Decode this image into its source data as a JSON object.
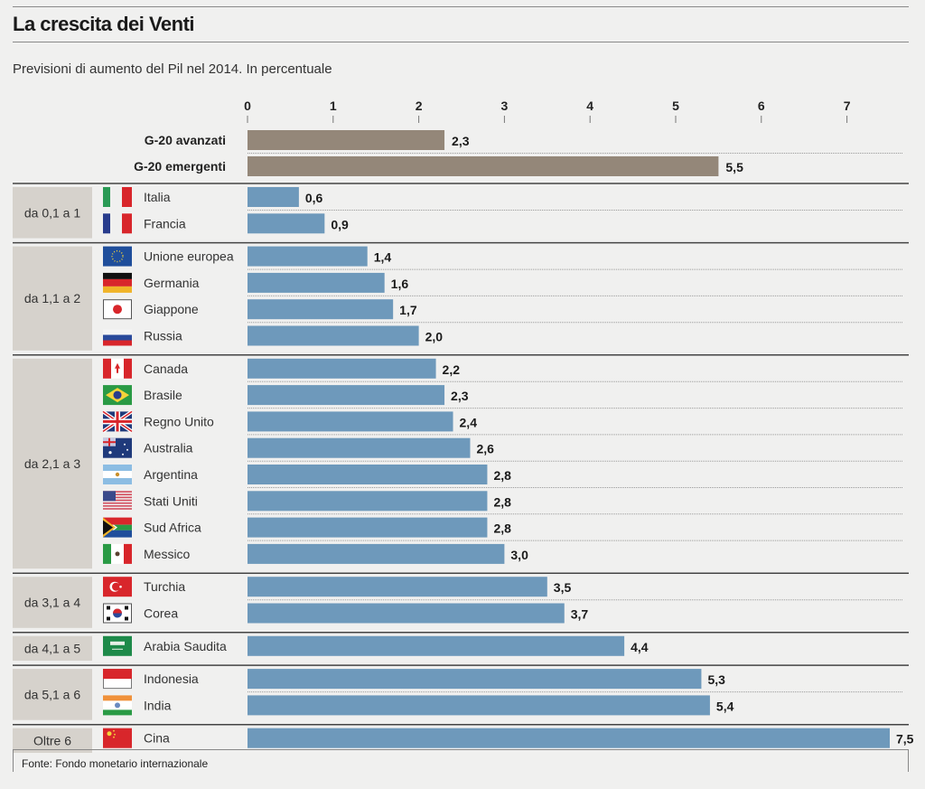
{
  "header": {
    "title": "La crescita dei Venti",
    "subtitle": "Previsioni di aumento del Pil nel 2014. In percentuale"
  },
  "source": "Fonte: Fondo monetario internazionale",
  "colors": {
    "aggregate_bar": "#948779",
    "country_bar": "#6e99bb",
    "group_box": "#d6d2cc",
    "background": "#f0f0ef"
  },
  "chart_data": {
    "type": "bar",
    "orientation": "horizontal",
    "title": "La crescita dei Venti",
    "subtitle": "Previsioni di aumento del Pil nel 2014. In percentuale",
    "xlabel": "",
    "ylabel": "",
    "xlim": [
      0,
      7.5
    ],
    "xticks": [
      "0",
      "1",
      "2",
      "3",
      "4",
      "5",
      "6",
      "7"
    ],
    "grid": false,
    "aggregates": [
      {
        "name": "G-20 avanzati",
        "value": 2.3,
        "label": "2,3"
      },
      {
        "name": "G-20 emergenti",
        "value": 5.5,
        "label": "5,5"
      }
    ],
    "groups": [
      {
        "label": "da 0,1 a  1",
        "items": [
          {
            "name": "Italia",
            "flag": "flag-italy",
            "value": 0.6,
            "label": "0,6"
          },
          {
            "name": "Francia",
            "flag": "flag-france",
            "value": 0.9,
            "label": "0,9"
          }
        ]
      },
      {
        "label": "da 1,1 a 2",
        "items": [
          {
            "name": "Unione europea",
            "flag": "flag-eu",
            "value": 1.4,
            "label": "1,4"
          },
          {
            "name": "Germania",
            "flag": "flag-germany",
            "value": 1.6,
            "label": "1,6"
          },
          {
            "name": "Giappone",
            "flag": "flag-japan",
            "value": 1.7,
            "label": "1,7"
          },
          {
            "name": "Russia",
            "flag": "flag-russia",
            "value": 2.0,
            "label": "2,0"
          }
        ]
      },
      {
        "label": "da 2,1 a 3",
        "items": [
          {
            "name": "Canada",
            "flag": "flag-canada",
            "value": 2.2,
            "label": "2,2"
          },
          {
            "name": "Brasile",
            "flag": "flag-brazil",
            "value": 2.3,
            "label": "2,3"
          },
          {
            "name": "Regno Unito",
            "flag": "flag-uk",
            "value": 2.4,
            "label": "2,4"
          },
          {
            "name": "Australia",
            "flag": "flag-australia",
            "value": 2.6,
            "label": "2,6"
          },
          {
            "name": "Argentina",
            "flag": "flag-argentina",
            "value": 2.8,
            "label": "2,8"
          },
          {
            "name": "Stati Uniti",
            "flag": "flag-usa",
            "value": 2.8,
            "label": "2,8"
          },
          {
            "name": "Sud Africa",
            "flag": "flag-south-africa",
            "value": 2.8,
            "label": "2,8"
          },
          {
            "name": "Messico",
            "flag": "flag-mexico",
            "value": 3.0,
            "label": "3,0"
          }
        ]
      },
      {
        "label": "da 3,1 a 4",
        "items": [
          {
            "name": "Turchia",
            "flag": "flag-turkey",
            "value": 3.5,
            "label": "3,5"
          },
          {
            "name": "Corea",
            "flag": "flag-korea",
            "value": 3.7,
            "label": "3,7"
          }
        ]
      },
      {
        "label": "da 4,1 a 5",
        "items": [
          {
            "name": "Arabia Saudita",
            "flag": "flag-saudi-arabia",
            "value": 4.4,
            "label": "4,4"
          }
        ]
      },
      {
        "label": "da 5,1 a 6",
        "items": [
          {
            "name": "Indonesia",
            "flag": "flag-indonesia",
            "value": 5.3,
            "label": "5,3"
          },
          {
            "name": "India",
            "flag": "flag-india",
            "value": 5.4,
            "label": "5,4"
          }
        ]
      },
      {
        "label": "Oltre 6",
        "items": [
          {
            "name": "Cina",
            "flag": "flag-china",
            "value": 7.5,
            "label": "7,5"
          }
        ]
      }
    ]
  }
}
